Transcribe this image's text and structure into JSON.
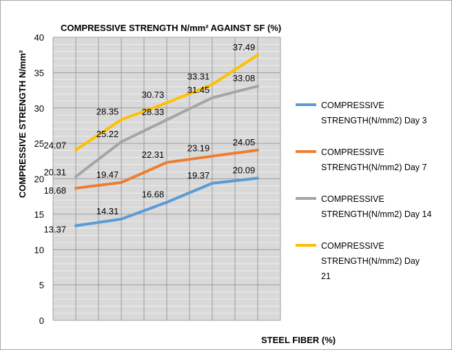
{
  "chart_data": {
    "type": "line",
    "title": "COMPRESSIVE STRENGTH N/mm² AGAINST SF (%)",
    "xlabel": "STEEL FIBER (%)",
    "ylabel": "COMPRESSIVE STRENGTH N/mm²",
    "ylim": [
      0,
      40
    ],
    "y_ticks": [
      "0",
      "5",
      "10",
      "15",
      "20",
      "25",
      "30",
      "35",
      "40"
    ],
    "x_count": 5,
    "grid": true,
    "legend_position": "right",
    "plot_background": "#d9d9d9",
    "series": [
      {
        "name": "COMPRESSIVE STRENGTH(N/mm2) Day 3",
        "legend_lines": [
          "COMPRESSIVE",
          "STRENGTH(N/mm2) Day 3"
        ],
        "color": "#5b9bd5",
        "values": [
          13.37,
          14.31,
          16.68,
          19.37,
          20.09
        ],
        "labels": [
          "13.37",
          "14.31",
          "16.68",
          "19.37",
          "20.09"
        ]
      },
      {
        "name": "COMPRESSIVE STRENGTH(N/mm2) Day 7",
        "legend_lines": [
          "COMPRESSIVE",
          "STRENGTH(N/mm2) Day 7"
        ],
        "color": "#ed7d31",
        "values": [
          18.68,
          19.47,
          22.31,
          23.19,
          24.05
        ],
        "labels": [
          "18.68",
          "19.47",
          "22.31",
          "23.19",
          "24.05"
        ]
      },
      {
        "name": "COMPRESSIVE STRENGTH(N/mm2) Day 14",
        "legend_lines": [
          "COMPRESSIVE",
          "STRENGTH(N/mm2) Day 14"
        ],
        "color": "#a5a5a5",
        "values": [
          20.31,
          25.22,
          28.33,
          31.45,
          33.08
        ],
        "labels": [
          "20.31",
          "25.22",
          "28.33",
          "31.45",
          "33.08"
        ]
      },
      {
        "name": "COMPRESSIVE STRENGTH(N/mm2) Day 21",
        "legend_lines": [
          "COMPRESSIVE",
          "STRENGTH(N/mm2)  Day",
          "21"
        ],
        "color": "#ffc000",
        "values": [
          24.07,
          28.35,
          30.73,
          33.31,
          37.49
        ],
        "labels": [
          "24.07",
          "28.35",
          "30.73",
          "33.31",
          "37.49"
        ]
      }
    ]
  }
}
